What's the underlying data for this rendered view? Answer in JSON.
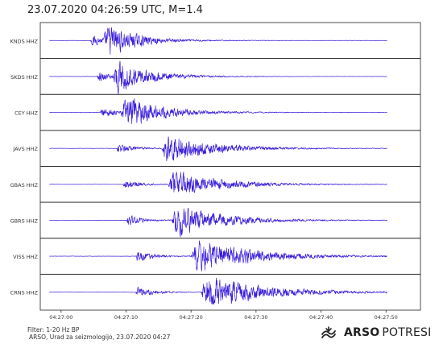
{
  "title": "23.07.2020  04:26:59 UTC, M=1.4",
  "footer": {
    "filter": "Filter: 1-20 Hz BP",
    "credit": "ARSO, Urad za seizmologijo, 23.07.2020  04:27"
  },
  "brand": {
    "bold": "ARSO",
    "normal": "POTRESI",
    "logo_icon": "arso-wave-logo-icon"
  },
  "colors": {
    "trace": "#3a1fdc",
    "frame": "#222222"
  },
  "chart_data": {
    "type": "line",
    "xlabel": "",
    "ylabel": "",
    "x_ticks": [
      "04:27:00",
      "04:27:10",
      "04:27:20",
      "04:27:30",
      "04:27:40",
      "04:27:50"
    ],
    "x_tick_seconds": [
      0,
      10,
      20,
      30,
      40,
      50
    ],
    "x_range_seconds": [
      -3.2,
      55.3
    ],
    "trace_window_seconds": [
      -1.8,
      50.2
    ],
    "grid": false,
    "series": [
      {
        "name": "KNDS HHZ",
        "p_arrival_s": 4.5,
        "s_arrival_s": 6.5,
        "peak_relative": 0.95,
        "coda_end_s": 22
      },
      {
        "name": "SKDS HHZ",
        "p_arrival_s": 5.5,
        "s_arrival_s": 8.0,
        "peak_relative": 0.9,
        "coda_end_s": 25
      },
      {
        "name": "CEY HHZ",
        "p_arrival_s": 6.0,
        "s_arrival_s": 9.2,
        "peak_relative": 1.0,
        "coda_end_s": 28
      },
      {
        "name": "JAVS HHZ",
        "p_arrival_s": 8.5,
        "s_arrival_s": 15.5,
        "peak_relative": 0.95,
        "coda_end_s": 38
      },
      {
        "name": "GBAS HHZ",
        "p_arrival_s": 9.5,
        "s_arrival_s": 16.5,
        "peak_relative": 0.85,
        "coda_end_s": 40
      },
      {
        "name": "GBRS HHZ",
        "p_arrival_s": 10.0,
        "s_arrival_s": 17.0,
        "peak_relative": 0.95,
        "coda_end_s": 40
      },
      {
        "name": "VISS HHZ",
        "p_arrival_s": 11.5,
        "s_arrival_s": 20.0,
        "peak_relative": 1.0,
        "coda_end_s": 48
      },
      {
        "name": "CRNS HHZ",
        "p_arrival_s": 11.5,
        "s_arrival_s": 21.5,
        "peak_relative": 1.0,
        "coda_end_s": 50
      }
    ]
  }
}
